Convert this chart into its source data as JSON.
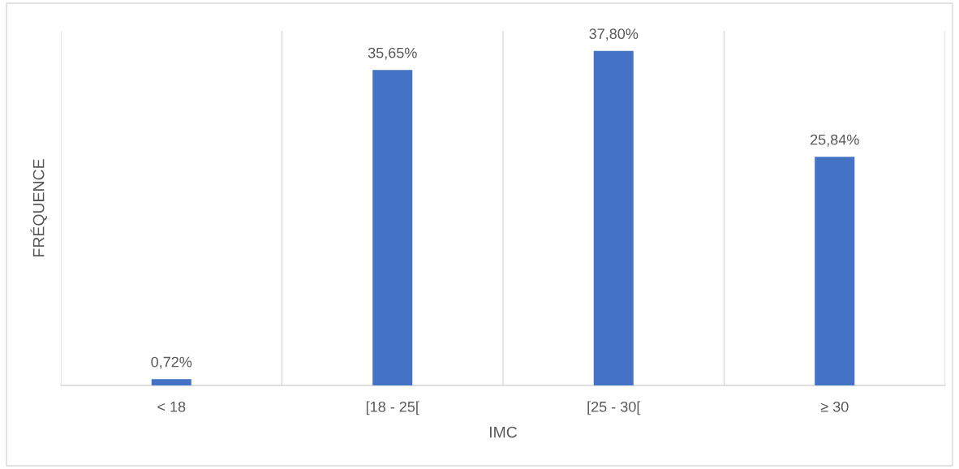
{
  "chart_data": {
    "type": "bar",
    "xlabel": "IMC",
    "ylabel": "FRÉQUENCE",
    "categories": [
      "< 18",
      "[18 - 25[",
      "[25 - 30[",
      "≥ 30"
    ],
    "values": [
      0.72,
      35.65,
      37.8,
      25.84
    ],
    "value_labels": [
      "0,72%",
      "35,65%",
      "37,80%",
      "25,84%"
    ],
    "color": "#4472c4",
    "grid": "x"
  }
}
